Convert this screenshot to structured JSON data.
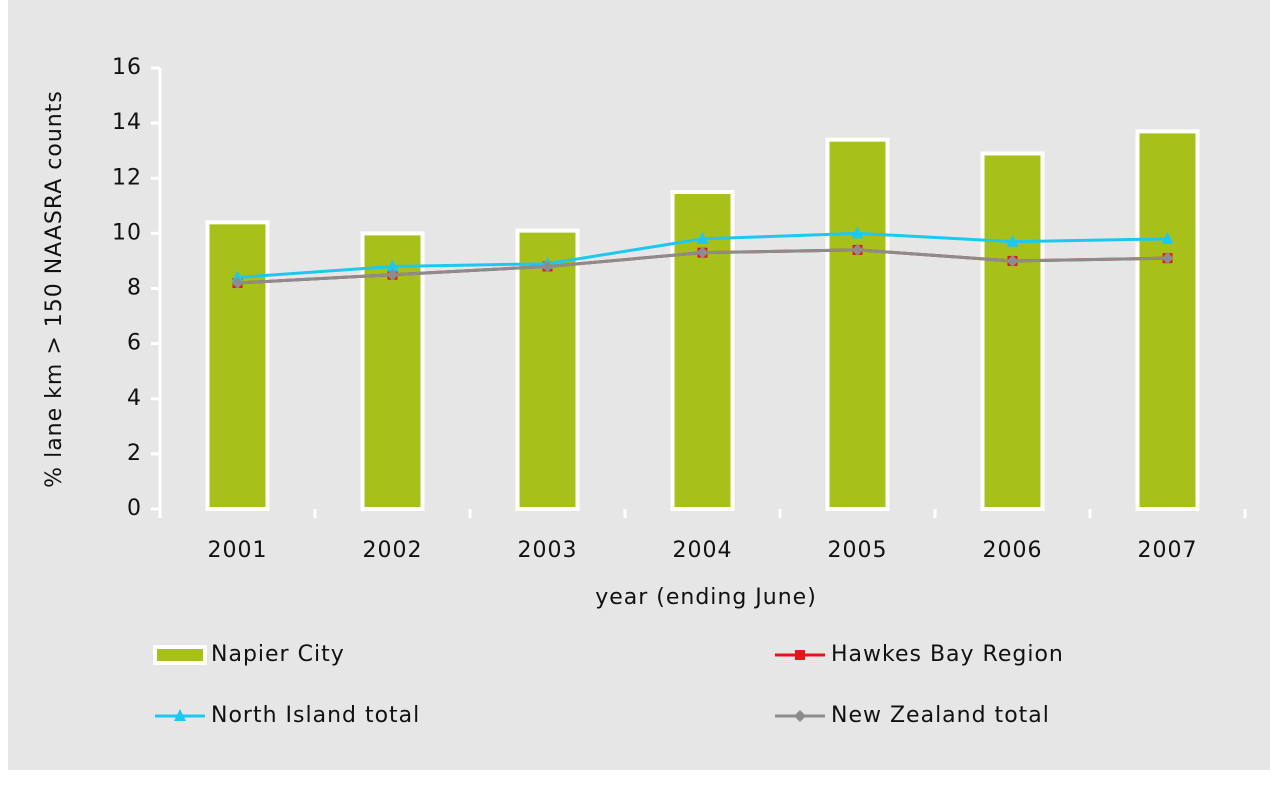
{
  "chart_data": {
    "type": "combo",
    "x_label": "year (ending June)",
    "y_label": "% lane km > 150 NAASRA counts",
    "categories": [
      "2001",
      "2002",
      "2003",
      "2004",
      "2005",
      "2006",
      "2007"
    ],
    "series": [
      {
        "name": "Napier City",
        "type": "bar",
        "color": "#a8c11a",
        "values": [
          10.4,
          10.0,
          10.1,
          11.5,
          13.4,
          12.9,
          13.7
        ]
      },
      {
        "name": "Hawkes Bay Region",
        "type": "line",
        "marker": "square",
        "color": "#e8141c",
        "values": [
          8.2,
          8.5,
          8.8,
          9.3,
          9.4,
          9.0,
          9.1
        ]
      },
      {
        "name": "North Island total",
        "type": "line",
        "marker": "triangle",
        "color": "#1cc8f0",
        "values": [
          8.4,
          8.8,
          8.9,
          9.8,
          10.0,
          9.7,
          9.8
        ]
      },
      {
        "name": "New Zealand total",
        "type": "line",
        "marker": "diamond",
        "color": "#8c8c8c",
        "values": [
          8.2,
          8.5,
          8.8,
          9.3,
          9.4,
          9.0,
          9.1
        ]
      }
    ],
    "ylim": [
      0,
      16
    ],
    "yticks": [
      0,
      2,
      4,
      6,
      8,
      10,
      12,
      14,
      16
    ]
  }
}
